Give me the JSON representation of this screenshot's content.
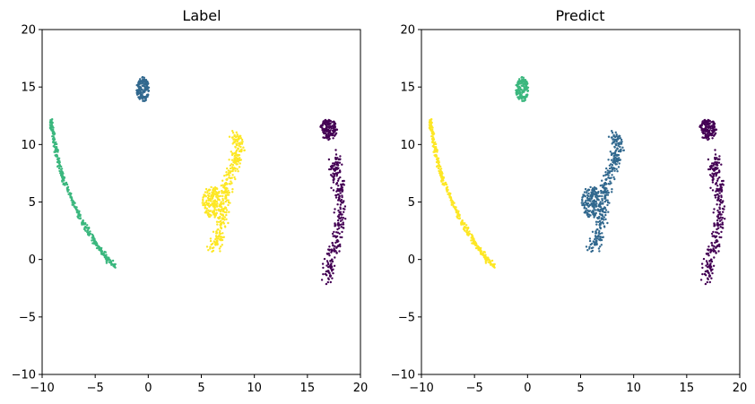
{
  "chart_data": [
    {
      "type": "scatter",
      "title": "Label",
      "xlabel": "",
      "ylabel": "",
      "xlim": [
        -10,
        20
      ],
      "ylim": [
        -10,
        20
      ],
      "xticks": [
        -10,
        -5,
        0,
        5,
        10,
        15,
        20
      ],
      "yticks": [
        -10,
        -5,
        0,
        5,
        10,
        15,
        20
      ],
      "grid": false,
      "clusters": [
        {
          "shape": "curve",
          "color": "#3bb77e",
          "path": [
            [
              -9.2,
              12.3
            ],
            [
              -9.0,
              11.0
            ],
            [
              -8.6,
              9.0
            ],
            [
              -8.0,
              7.0
            ],
            [
              -7.0,
              4.8
            ],
            [
              -6.0,
              3.0
            ],
            [
              -5.0,
              1.5
            ],
            [
              -4.0,
              0.2
            ],
            [
              -3.2,
              -0.6
            ]
          ]
        },
        {
          "shape": "blob",
          "color": "#31688e",
          "center": [
            -0.5,
            14.8
          ],
          "radius": [
            0.6,
            1.1
          ]
        },
        {
          "shape": "curve",
          "color": "#fde725",
          "path": [
            [
              6.0,
              0.8
            ],
            [
              6.6,
              2.0
            ],
            [
              7.0,
              4.0
            ],
            [
              7.2,
              5.5
            ],
            [
              7.6,
              7.0
            ],
            [
              8.2,
              8.5
            ],
            [
              8.6,
              9.8
            ],
            [
              8.2,
              10.8
            ]
          ],
          "spread": 0.45
        },
        {
          "shape": "blob",
          "color": "#fde725",
          "center": [
            6.0,
            5.0
          ],
          "radius": [
            0.9,
            1.4
          ]
        },
        {
          "shape": "curve",
          "color": "#440154",
          "path": [
            [
              16.8,
              -2.0
            ],
            [
              17.2,
              0.0
            ],
            [
              17.8,
              2.0
            ],
            [
              18.2,
              4.0
            ],
            [
              18.0,
              6.0
            ],
            [
              17.6,
              7.8
            ],
            [
              17.8,
              8.8
            ]
          ],
          "spread": 0.45
        },
        {
          "shape": "blob",
          "color": "#440154",
          "center": [
            17.0,
            11.3
          ],
          "radius": [
            0.8,
            0.9
          ]
        }
      ]
    },
    {
      "type": "scatter",
      "title": "Predict",
      "xlabel": "",
      "ylabel": "",
      "xlim": [
        -10,
        20
      ],
      "ylim": [
        -10,
        20
      ],
      "xticks": [
        -10,
        -5,
        0,
        5,
        10,
        15,
        20
      ],
      "yticks": [
        -10,
        -5,
        0,
        5,
        10,
        15,
        20
      ],
      "grid": false,
      "clusters": [
        {
          "shape": "curve",
          "color": "#fde725",
          "path": [
            [
              -9.2,
              12.3
            ],
            [
              -9.0,
              11.0
            ],
            [
              -8.6,
              9.0
            ],
            [
              -8.0,
              7.0
            ],
            [
              -7.0,
              4.8
            ],
            [
              -6.0,
              3.0
            ],
            [
              -5.0,
              1.5
            ],
            [
              -4.0,
              0.2
            ],
            [
              -3.2,
              -0.6
            ]
          ]
        },
        {
          "shape": "blob",
          "color": "#3bb77e",
          "center": [
            -0.5,
            14.8
          ],
          "radius": [
            0.6,
            1.1
          ]
        },
        {
          "shape": "curve",
          "color": "#31688e",
          "path": [
            [
              6.0,
              0.8
            ],
            [
              6.6,
              2.0
            ],
            [
              7.0,
              4.0
            ],
            [
              7.2,
              5.5
            ],
            [
              7.6,
              7.0
            ],
            [
              8.2,
              8.5
            ],
            [
              8.6,
              9.8
            ],
            [
              8.2,
              10.8
            ]
          ],
          "spread": 0.45
        },
        {
          "shape": "blob",
          "color": "#31688e",
          "center": [
            6.0,
            5.0
          ],
          "radius": [
            0.9,
            1.4
          ]
        },
        {
          "shape": "curve",
          "color": "#440154",
          "path": [
            [
              16.8,
              -2.0
            ],
            [
              17.2,
              0.0
            ],
            [
              17.8,
              2.0
            ],
            [
              18.2,
              4.0
            ],
            [
              18.0,
              6.0
            ],
            [
              17.6,
              7.8
            ],
            [
              17.8,
              8.8
            ]
          ],
          "spread": 0.45
        },
        {
          "shape": "blob",
          "color": "#440154",
          "center": [
            17.0,
            11.3
          ],
          "radius": [
            0.8,
            0.9
          ]
        }
      ]
    }
  ]
}
